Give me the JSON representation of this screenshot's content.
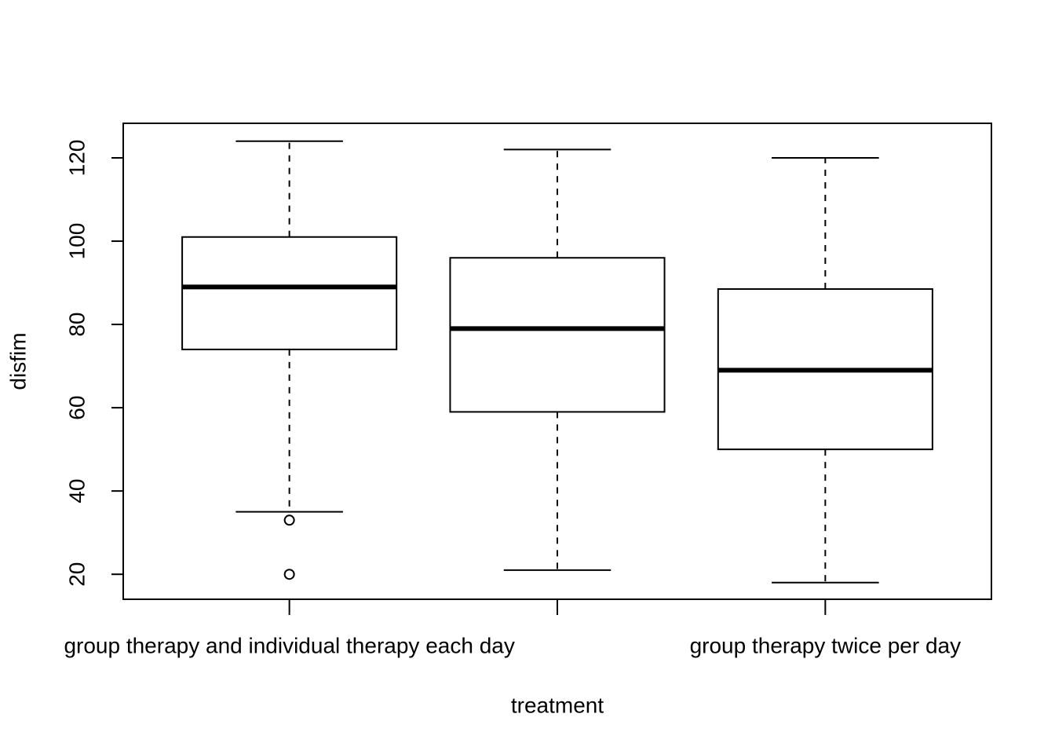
{
  "chart_data": {
    "type": "boxplot",
    "xlabel": "treatment",
    "ylabel": "disfim",
    "categories": [
      "group therapy and individual therapy each day",
      null,
      "group therapy twice per day"
    ],
    "boxes": [
      {
        "whisker_low": 35,
        "q1": 74,
        "median": 89,
        "q3": 101,
        "whisker_high": 124,
        "outliers": [
          33,
          20
        ]
      },
      {
        "whisker_low": 21,
        "q1": 59,
        "median": 79,
        "q3": 96,
        "whisker_high": 122,
        "outliers": []
      },
      {
        "whisker_low": 18,
        "q1": 50,
        "median": 69,
        "q3": 88.5,
        "whisker_high": 120,
        "outliers": []
      }
    ],
    "color": "#000000",
    "fill": "#ffffff",
    "ylim": [
      14,
      128.3
    ],
    "yticks": [
      20,
      40,
      60,
      80,
      100,
      120
    ]
  }
}
